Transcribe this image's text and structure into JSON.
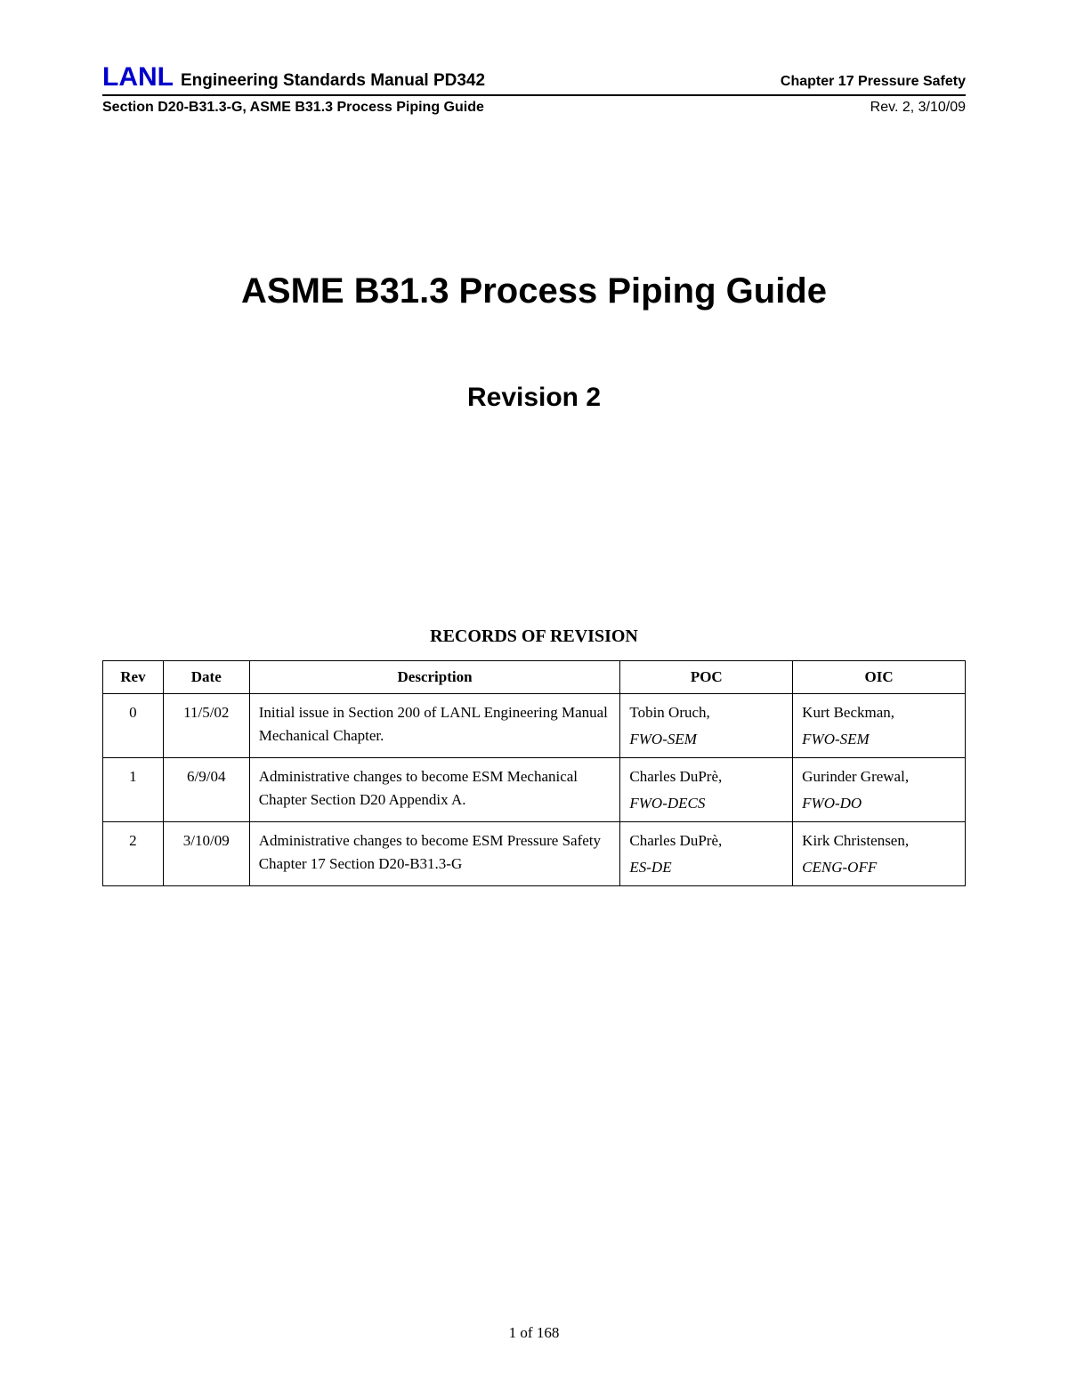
{
  "header": {
    "lanl": "LANL",
    "manual_title": "Engineering Standards Manual PD342",
    "chapter": "Chapter 17 Pressure Safety",
    "section": "Section D20-B31.3-G, ASME B31.3 Process Piping Guide",
    "rev_date": "Rev. 2, 3/10/09"
  },
  "main_title": "ASME B31.3 Process Piping Guide",
  "revision_label": "Revision 2",
  "records_heading": "RECORDS OF REVISION",
  "table": {
    "columns": {
      "rev": "Rev",
      "date": "Date",
      "description": "Description",
      "poc": "POC",
      "oic": "OIC"
    },
    "rows": [
      {
        "rev": "0",
        "date": "11/5/02",
        "description": "Initial issue in Section 200 of LANL Engineering Manual Mechanical Chapter.",
        "poc_name": "Tobin Oruch,",
        "poc_org": "FWO-SEM",
        "oic_name": "Kurt Beckman,",
        "oic_org": "FWO-SEM"
      },
      {
        "rev": "1",
        "date": "6/9/04",
        "description": "Administrative changes to become ESM Mechanical Chapter Section D20 Appendix A.",
        "poc_name": "Charles DuPrè,",
        "poc_org": "FWO-DECS",
        "oic_name": "Gurinder Grewal,",
        "oic_org": "FWO-DO"
      },
      {
        "rev": "2",
        "date": "3/10/09",
        "description": "Administrative changes to become ESM Pressure Safety Chapter 17 Section D20-B31.3-G",
        "poc_name": "Charles DuPrè,",
        "poc_org": "ES-DE",
        "oic_name": "Kirk Christensen,",
        "oic_org": "CENG-OFF"
      }
    ]
  },
  "footer": {
    "page_info": "1 of 168"
  },
  "styling": {
    "background_color": "#ffffff",
    "text_color": "#000000",
    "lanl_color": "#0000cc",
    "border_color": "#000000",
    "body_font": "Arial, Helvetica, sans-serif",
    "serif_font": "Times New Roman, Times, serif",
    "lanl_fontsize": 30,
    "main_title_fontsize": 40,
    "revision_fontsize": 30,
    "records_heading_fontsize": 20,
    "table_fontsize": 17,
    "header_manual_fontsize": 19,
    "header_chapter_fontsize": 16
  }
}
